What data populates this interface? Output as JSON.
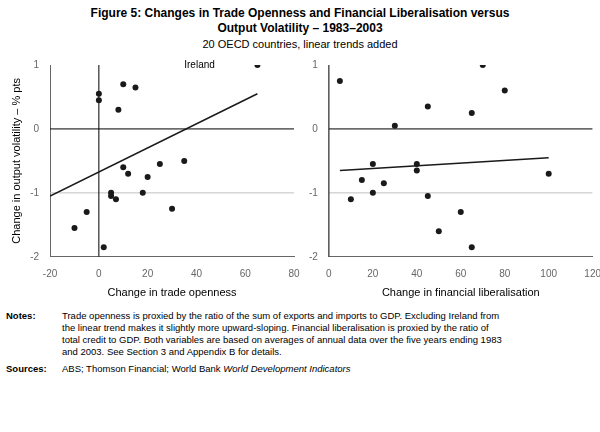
{
  "chart_data": [
    {
      "type": "scatter",
      "title": "Figure 5: Changes in Trade Openness and Financial Liberalisation versus\nOutput Volatility – 1983–2003",
      "subtitle": "20 OECD countries, linear trends added",
      "notes_label": "Notes:",
      "notes_text": "Trade openness is proxied by the ratio of the sum of exports and imports to GDP. Excluding Ireland from\nthe linear trend makes it slightly more upward-sloping. Financial liberalisation is proxied by the ratio of\ntotal credit to GDP. Both variables are based on averages of annual data over the five years ending 1983\nand 2003. See Section 3 and Appendix B for details.",
      "sources_label": "Sources:",
      "sources_text": "ABS; Thomson Financial; World Bank",
      "sources_text_italic": "World Development Indicators",
      "xlabel": "Change in trade openness",
      "ylabel": "Change in output volatility – % pts",
      "xlim": [
        -20,
        80
      ],
      "xticks": [
        -20,
        0,
        20,
        40,
        60,
        80
      ],
      "ylim": [
        -2,
        1
      ],
      "yticks": [
        -2,
        -1,
        0,
        1
      ],
      "grid": false,
      "legend": false,
      "hlines": [
        {
          "value": 0,
          "color": "#000000"
        },
        {
          "value": -1,
          "color": "#c0c0c0"
        }
      ],
      "vlines": [
        {
          "value": 0,
          "color": "#000000"
        }
      ],
      "annotations": [
        {
          "text": "Ireland",
          "x": 35,
          "y": 0.92
        }
      ],
      "series": [
        {
          "type": "scatter",
          "marker": "circle",
          "color": "#1a1a1a",
          "x": [
            -10,
            -5,
            0,
            0,
            2,
            5,
            5,
            7,
            8,
            10,
            10,
            12,
            15,
            18,
            20,
            25,
            30,
            35,
            65
          ],
          "values": [
            -1.55,
            -1.3,
            0.55,
            0.45,
            -1.85,
            -1.0,
            -1.05,
            -1.1,
            0.3,
            -0.6,
            0.7,
            -0.7,
            0.65,
            -1.0,
            -0.75,
            -0.55,
            -1.25,
            -0.5,
            1.0
          ]
        },
        {
          "type": "line",
          "line_style": "solid",
          "color": "#1a1a1a",
          "x": [
            -20,
            65
          ],
          "values": [
            -1.05,
            0.55
          ]
        }
      ]
    },
    {
      "type": "scatter",
      "xlabel": "Change in financial liberalisation",
      "xlim": [
        0,
        120
      ],
      "xticks": [
        0,
        20,
        40,
        60,
        80,
        100,
        120
      ],
      "ylim": [
        -2,
        1
      ],
      "yticks": [
        -2,
        -1,
        0,
        1
      ],
      "grid": false,
      "legend": false,
      "hlines": [
        {
          "value": 0,
          "color": "#000000"
        },
        {
          "value": -1,
          "color": "#c0c0c0"
        }
      ],
      "vlines": [
        {
          "value": 0,
          "color": "#000000"
        }
      ],
      "series": [
        {
          "type": "scatter",
          "marker": "circle",
          "color": "#1a1a1a",
          "x": [
            5,
            10,
            15,
            20,
            20,
            25,
            30,
            40,
            40,
            45,
            45,
            50,
            60,
            65,
            65,
            70,
            80,
            100
          ],
          "values": [
            0.75,
            -1.1,
            -0.8,
            -0.55,
            -1.0,
            -0.85,
            0.05,
            -0.55,
            -0.65,
            -1.05,
            0.35,
            -1.6,
            -1.3,
            -1.85,
            0.25,
            1.0,
            0.6,
            -0.7
          ]
        },
        {
          "type": "line",
          "line_style": "solid",
          "color": "#1a1a1a",
          "x": [
            5,
            100
          ],
          "values": [
            -0.65,
            -0.45
          ]
        }
      ]
    }
  ]
}
